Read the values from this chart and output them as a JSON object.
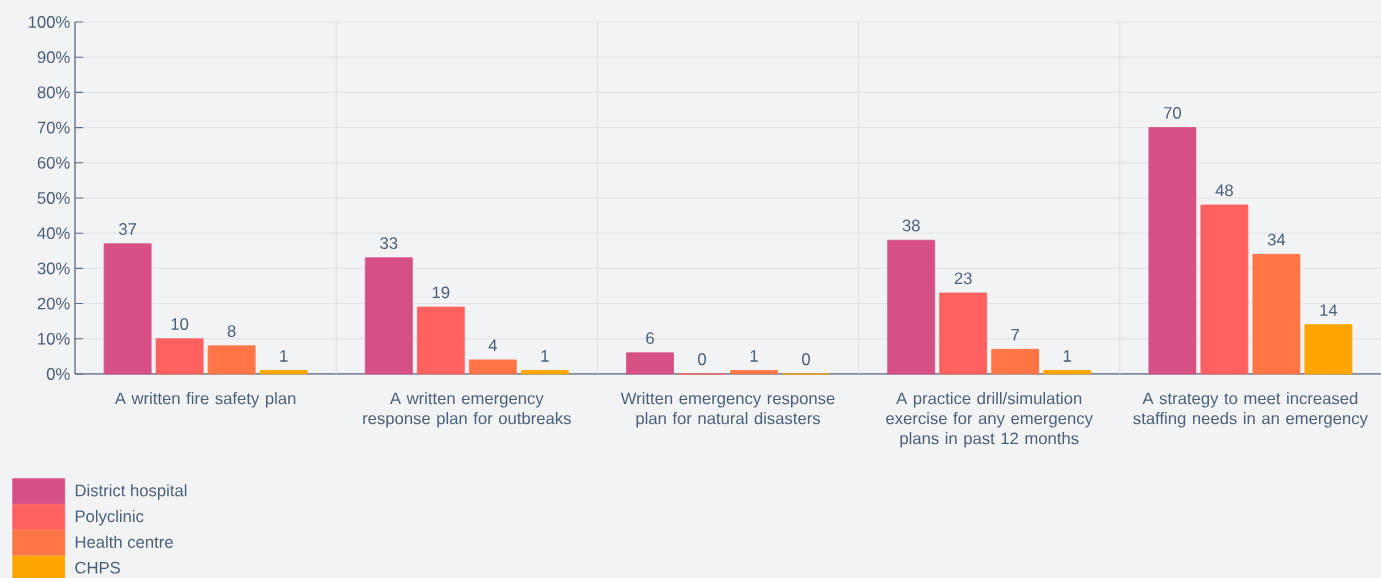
{
  "chart_data": {
    "type": "bar",
    "categories": [
      "A written fire safety plan",
      "A written emergency response plan for outbreaks",
      "Written emergency response plan for natural disasters",
      "A practice drill/simulation exercise for any emergency plans in past 12 months",
      "A strategy to meet increased staffing needs in an emergency"
    ],
    "series": [
      {
        "name": "District hospital",
        "color": "#d64f85",
        "values": [
          37,
          33,
          6,
          38,
          70
        ]
      },
      {
        "name": "Polyclinic",
        "color": "#fe615f",
        "values": [
          10,
          19,
          0,
          23,
          48
        ]
      },
      {
        "name": "Health centre",
        "color": "#fe7546",
        "values": [
          8,
          4,
          1,
          7,
          34
        ]
      },
      {
        "name": "CHPS",
        "color": "#fea500",
        "values": [
          1,
          1,
          0,
          1,
          14
        ]
      }
    ],
    "ylim": [
      0,
      100
    ],
    "yticks": [
      {
        "value": 0,
        "label": "0%"
      },
      {
        "value": 10,
        "label": "10%"
      },
      {
        "value": 20,
        "label": "20%"
      },
      {
        "value": 30,
        "label": "30%"
      },
      {
        "value": 40,
        "label": "40%"
      },
      {
        "value": 50,
        "label": "50%"
      },
      {
        "value": 60,
        "label": "60%"
      },
      {
        "value": 70,
        "label": "70%"
      },
      {
        "value": 80,
        "label": "80%"
      },
      {
        "value": 90,
        "label": "90%"
      },
      {
        "value": 100,
        "label": "100%"
      }
    ],
    "grid": true,
    "data_labels": true,
    "legend": "bottom left"
  }
}
